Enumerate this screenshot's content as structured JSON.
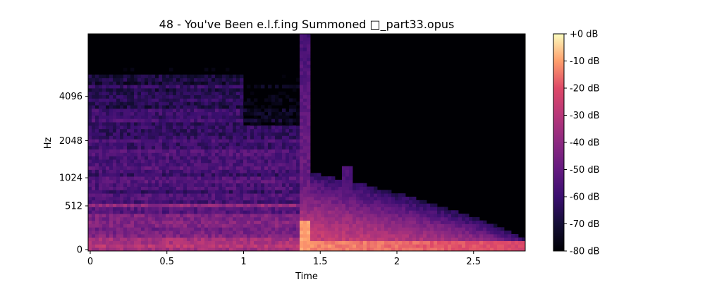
{
  "chart_data": {
    "type": "heatmap",
    "title": "48 - You've Been e.l.f.ing Summoned □_part33.opus",
    "xlabel": "Time",
    "ylabel": "Hz",
    "x_ticks": [
      {
        "value": 0,
        "label": "0"
      },
      {
        "value": 0.5,
        "label": "0.5"
      },
      {
        "value": 1,
        "label": "1"
      },
      {
        "value": 1.5,
        "label": "1.5"
      },
      {
        "value": 2,
        "label": "2"
      },
      {
        "value": 2.5,
        "label": "2.5"
      }
    ],
    "y_ticks": [
      {
        "value": 0,
        "label": "0"
      },
      {
        "value": 512,
        "label": "512"
      },
      {
        "value": 1024,
        "label": "1024"
      },
      {
        "value": 2048,
        "label": "2048"
      },
      {
        "value": 4096,
        "label": "4096"
      }
    ],
    "xlim": [
      0,
      2.83
    ],
    "y_scale": "mel",
    "colorbar": {
      "range_db": [
        -80,
        0
      ],
      "ticks": [
        {
          "value": 0,
          "label": "+0 dB"
        },
        {
          "value": -10,
          "label": "-10 dB"
        },
        {
          "value": -20,
          "label": "-20 dB"
        },
        {
          "value": -30,
          "label": "-30 dB"
        },
        {
          "value": -40,
          "label": "-40 dB"
        },
        {
          "value": -50,
          "label": "-50 dB"
        },
        {
          "value": -60,
          "label": "-60 dB"
        },
        {
          "value": -70,
          "label": "-70 dB"
        },
        {
          "value": -80,
          "label": "-80 dB"
        }
      ],
      "colormap": "magma"
    },
    "features": {
      "onset_time": 1.35,
      "decay_end_time": 2.83,
      "secondary_onset_time": 1.63,
      "sustained_band_hz": 520
    },
    "grid": false
  }
}
